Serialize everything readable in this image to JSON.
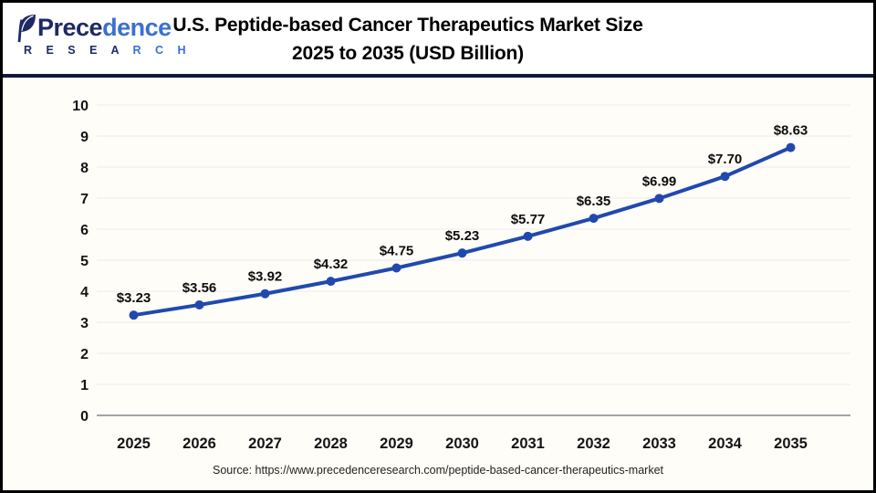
{
  "header": {
    "logo": {
      "word_main": "Prece",
      "word_accent": "dence",
      "sub_main": "R E S E A ",
      "sub_accent": "R C H"
    },
    "title_line1": "U.S. Peptide-based Cancer Therapeutics Market Size",
    "title_line2": "2025 to 2035 (USD Billion)"
  },
  "chart_data": {
    "type": "line",
    "title": "U.S. Peptide-based Cancer Therapeutics Market Size 2025 to 2035 (USD Billion)",
    "categories": [
      "2025",
      "2026",
      "2027",
      "2028",
      "2029",
      "2030",
      "2031",
      "2032",
      "2033",
      "2034",
      "2035"
    ],
    "values": [
      3.23,
      3.56,
      3.92,
      4.32,
      4.75,
      5.23,
      5.77,
      6.35,
      6.99,
      7.7,
      8.63
    ],
    "point_labels": [
      "$3.23",
      "$3.56",
      "$3.92",
      "$4.32",
      "$4.75",
      "$5.23",
      "$5.77",
      "$6.35",
      "$6.99",
      "$7.70",
      "$8.63"
    ],
    "xlabel": "",
    "ylabel": "",
    "ylim": [
      0,
      10
    ],
    "yticks": [
      0,
      1,
      2,
      3,
      4,
      5,
      6,
      7,
      8,
      9,
      10
    ],
    "grid": true,
    "legend": "none",
    "line_color": "#2149ad",
    "marker": "circle",
    "marker_color": "#2149ad"
  },
  "footer": {
    "source": "Source: https://www.precedenceresearch.com/peptide-based-cancer-therapeutics-market"
  },
  "colors": {
    "accent_navy": "#1d2a66",
    "accent_blue": "#3a6fd4",
    "divider": "#11173a",
    "background": "#fffdf8",
    "gridline": "#ececec",
    "axis_line": "#a3a3a3"
  }
}
